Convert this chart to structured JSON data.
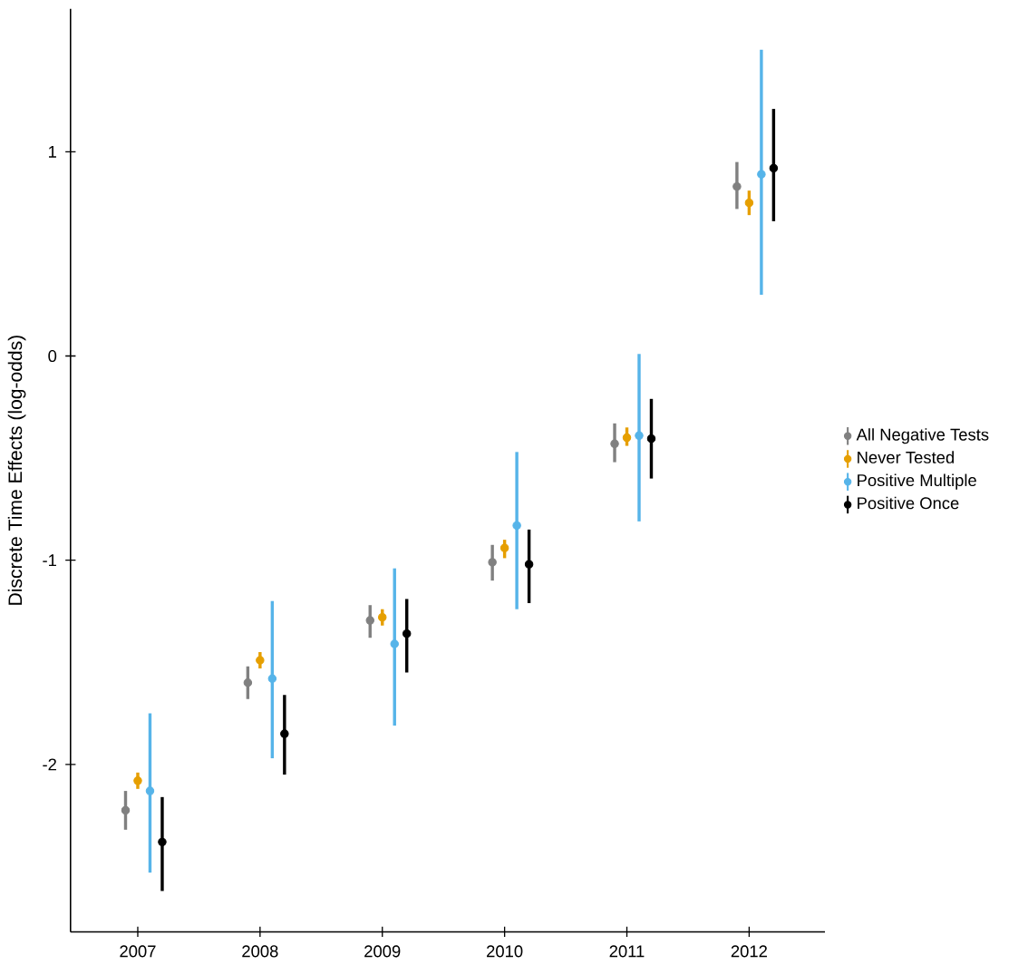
{
  "chart_data": {
    "type": "scatter",
    "ylabel": "Discrete Time Effects (log-odds)",
    "categories": [
      "2007",
      "2008",
      "2009",
      "2010",
      "2011",
      "2012"
    ],
    "ylim": [
      -2.82,
      1.7
    ],
    "yticks": [
      -2,
      -1,
      0,
      1
    ],
    "grid": false,
    "legend": "right",
    "marker": "circle",
    "series": [
      {
        "name": "All Negative Tests",
        "color": "#808080",
        "values": [
          -2.225,
          -1.6,
          -1.295,
          -1.01,
          -0.43,
          0.83
        ],
        "errors": [
          [
            -2.32,
            -2.13
          ],
          [
            -1.68,
            -1.52
          ],
          [
            -1.38,
            -1.22
          ],
          [
            -1.1,
            -0.925
          ],
          [
            -0.52,
            -0.33
          ],
          [
            0.72,
            0.95
          ]
        ]
      },
      {
        "name": "Never Tested",
        "color": "#e69f00",
        "values": [
          -2.08,
          -1.49,
          -1.28,
          -0.94,
          -0.4,
          0.75
        ],
        "errors": [
          [
            -2.12,
            -2.04
          ],
          [
            -1.53,
            -1.45
          ],
          [
            -1.32,
            -1.24
          ],
          [
            -0.99,
            -0.9
          ],
          [
            -0.44,
            -0.35
          ],
          [
            0.69,
            0.81
          ]
        ]
      },
      {
        "name": "Positive Multiple",
        "color": "#56b4e9",
        "values": [
          -2.13,
          -1.58,
          -1.41,
          -0.83,
          -0.39,
          0.89
        ],
        "errors": [
          [
            -2.53,
            -1.75
          ],
          [
            -1.97,
            -1.2
          ],
          [
            -1.81,
            -1.04
          ],
          [
            -1.24,
            -0.47
          ],
          [
            -0.81,
            0.01
          ],
          [
            0.3,
            1.5
          ]
        ]
      },
      {
        "name": "Positive Once",
        "color": "#000000",
        "values": [
          -2.38,
          -1.85,
          -1.36,
          -1.02,
          -0.405,
          0.92
        ],
        "errors": [
          [
            -2.62,
            -2.16
          ],
          [
            -2.05,
            -1.66
          ],
          [
            -1.55,
            -1.19
          ],
          [
            -1.21,
            -0.85
          ],
          [
            -0.6,
            -0.21
          ],
          [
            0.66,
            1.21
          ]
        ]
      }
    ]
  }
}
